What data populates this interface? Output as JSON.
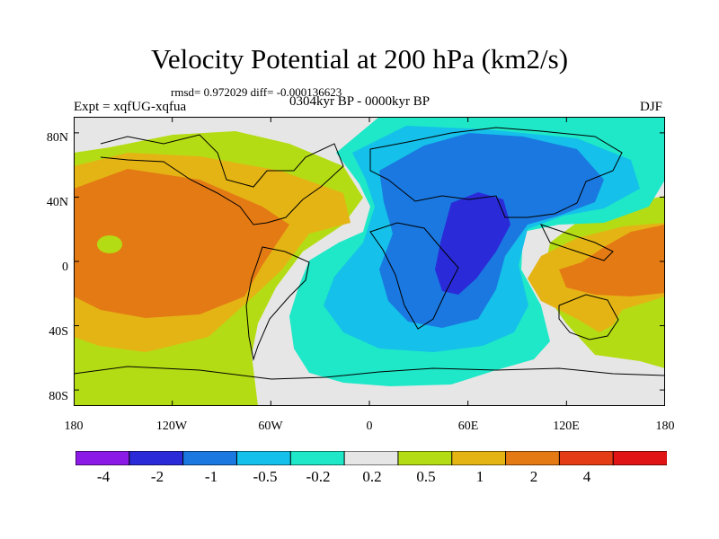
{
  "title": "Velocity Potential at 200 hPa (km2/s)",
  "stats": "rmsd= 0.972029 diff= -0.000136623",
  "experiment": "Expt = xqfUG-xqfua",
  "period": "0304kyr BP - 0000kyr BP",
  "season": "DJF",
  "chart_data": {
    "type": "contour-map",
    "variable": "Velocity potential at 200 hPa",
    "units": "km2/s",
    "lon_range": [
      -180,
      180
    ],
    "lat_range": [
      -90,
      90
    ],
    "lat_ticks": [
      "80N",
      "40N",
      "0",
      "40S",
      "80S"
    ],
    "lon_ticks": [
      "180",
      "120W",
      "60W",
      "0",
      "60E",
      "120E",
      "180"
    ],
    "colorbar": {
      "levels": [
        "-4",
        "-2",
        "-1",
        "-0.5",
        "-0.2",
        "0.2",
        "0.5",
        "1",
        "2",
        "4"
      ],
      "colors": [
        "#8b1ae6",
        "#2a2ad8",
        "#1a78e0",
        "#15c0ea",
        "#1ee8c8",
        "#e6e6e6",
        "#b4dc14",
        "#e4b414",
        "#e47a14",
        "#e43c14",
        "#e01414"
      ]
    },
    "features": [
      {
        "label": "positive centre",
        "lon": -120,
        "lat": 15,
        "level": "2"
      },
      {
        "label": "negative centre",
        "lon": 45,
        "lat": 5,
        "level": "-2"
      },
      {
        "label": "positive centre",
        "lon": 150,
        "lat": 10,
        "level": "1"
      }
    ]
  }
}
